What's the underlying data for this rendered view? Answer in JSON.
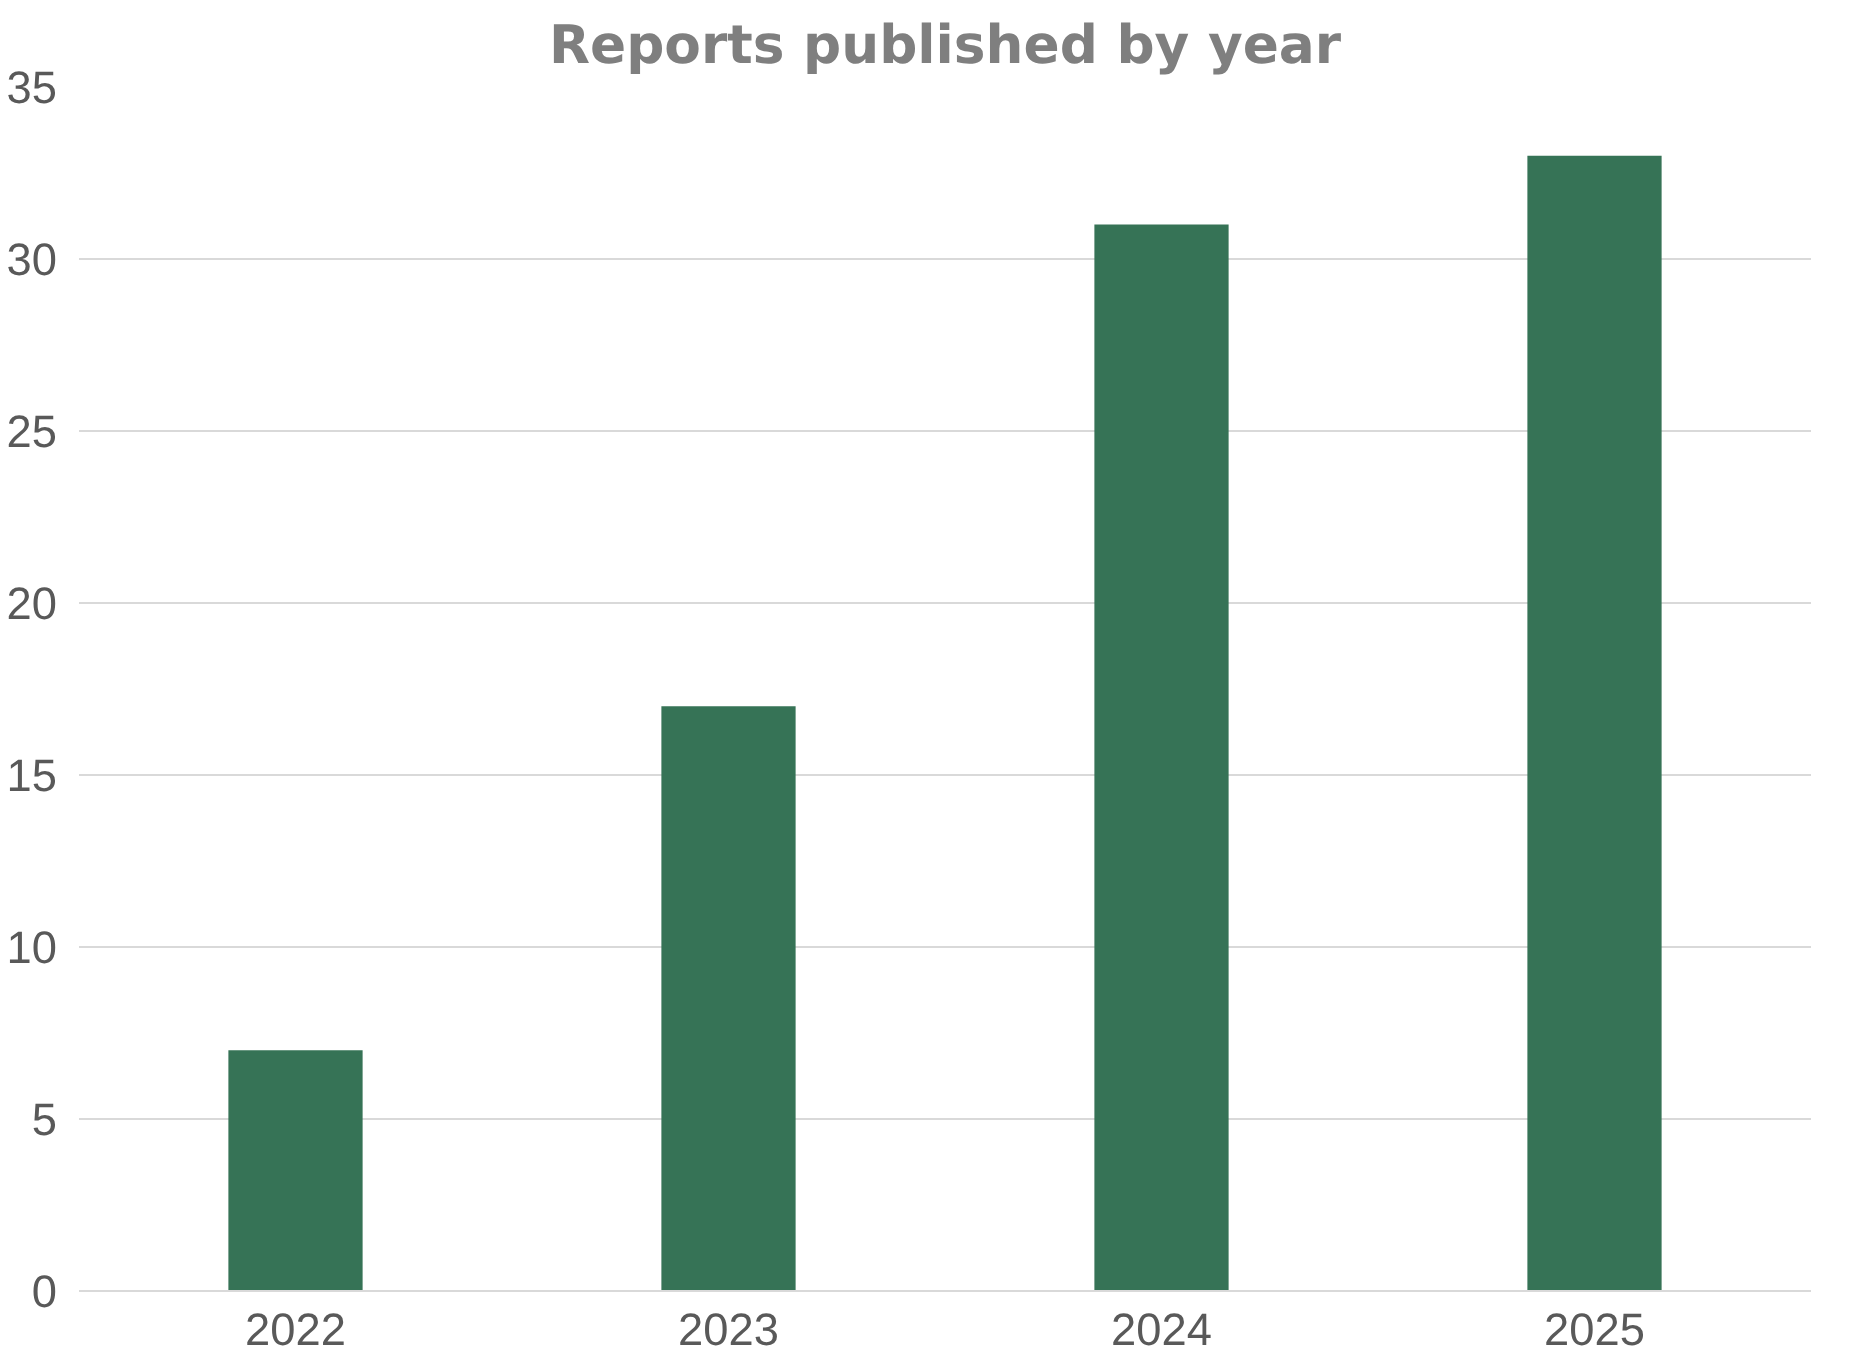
{
  "chart_data": {
    "type": "bar",
    "title": "Reports published by year",
    "categories": [
      "2022",
      "2023",
      "2024",
      "2025"
    ],
    "values": [
      7,
      17,
      31,
      33
    ],
    "color": "#367356",
    "ylim": [
      0,
      35
    ],
    "yticks": [
      0,
      5,
      10,
      15,
      20,
      25,
      30,
      35
    ],
    "grid": "y"
  }
}
